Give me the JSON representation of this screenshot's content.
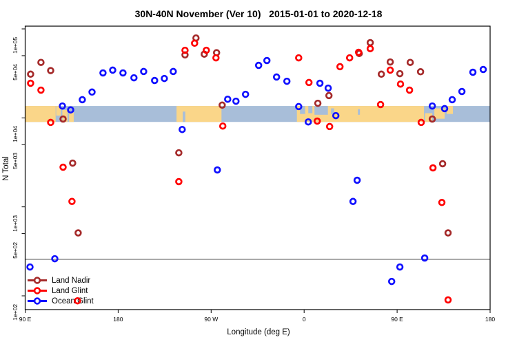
{
  "title": "30N-40N November (Ver 10)   2015-01-01 to 2020-12-18",
  "colors": {
    "land_nadir": "#A52A2A",
    "land_glint": "#FF0000",
    "ocean_glint": "#1010FF",
    "map_land": "#FAD689",
    "map_ocean": "#A8BED9",
    "reference_line": "#7F7F7F",
    "frame": "#000000"
  },
  "legend": [
    {
      "label": "Land Nadir",
      "color": "#A52A2A"
    },
    {
      "label": "Land Glint",
      "color": "#FF0000"
    },
    {
      "label": "Ocean Glint",
      "color": "#1010FF"
    }
  ],
  "map_strip": {
    "description": "world coastline strip for the 30N-40N latitude band drawn across the 1e+04 level",
    "top_value": 13600,
    "bottom_value": 9000,
    "land_segments": [
      {
        "t0": 0,
        "t1": 29.5
      },
      {
        "t0": 30,
        "t1": 34.5,
        "f0": 0,
        "f1": 0.6
      },
      {
        "t0": 36,
        "t1": 41,
        "f0": 0.25,
        "f1": 1
      },
      {
        "t0": 42.5,
        "t1": 47,
        "f0": 0.4,
        "f1": 1
      },
      {
        "t0": 146.5,
        "t1": 190
      },
      {
        "t0": 263,
        "t1": 386
      },
      {
        "t0": 387,
        "t1": 394,
        "f0": 0.45,
        "f1": 1
      },
      {
        "t0": 396,
        "t1": 406,
        "f0": 0.15,
        "f1": 0.8
      },
      {
        "t0": 408,
        "t1": 414,
        "f0": 0,
        "f1": 0.5
      }
    ],
    "ocean_patches": [
      {
        "t0": 152.5,
        "t1": 155,
        "f0": 0.35,
        "f1": 1
      },
      {
        "t0": 266,
        "t1": 271,
        "f0": 0,
        "f1": 0.5
      },
      {
        "t0": 274,
        "t1": 278,
        "f0": 0,
        "f1": 0.45
      },
      {
        "t0": 280,
        "t1": 293,
        "f0": 0,
        "f1": 0.55
      },
      {
        "t0": 296,
        "t1": 299,
        "f0": 0.15,
        "f1": 0.5
      },
      {
        "t0": 322,
        "t1": 324,
        "f0": 0.2,
        "f1": 0.55
      }
    ]
  },
  "chart_data": {
    "type": "scatter",
    "title": "30N-40N November (Ver 10)   2015-01-01 to 2020-12-18",
    "x_axis": {
      "label": "Longitude (deg E)",
      "unit": "axis position in degrees east of 90E; axis spans 450 deg, wrapping past the dateline",
      "range": [
        0,
        450
      ],
      "ticks": [
        {
          "t": 0,
          "label": "90 E"
        },
        {
          "t": 90,
          "label": "180"
        },
        {
          "t": 180,
          "label": "90 W"
        },
        {
          "t": 270,
          "label": "0"
        },
        {
          "t": 360,
          "label": "90 E"
        },
        {
          "t": 450,
          "label": "180"
        }
      ]
    },
    "y_axis": {
      "label": "N Total",
      "scale": "log10",
      "range": [
        70,
        120000
      ],
      "ticks": [
        {
          "v": 100000,
          "label": "1e+05"
        },
        {
          "v": 50000,
          "label": "5e+04"
        },
        {
          "v": 10000,
          "label": "1e+04"
        },
        {
          "v": 5000,
          "label": "5e+03"
        },
        {
          "v": 1000,
          "label": "1e+03"
        },
        {
          "v": 500,
          "label": "5e+02"
        },
        {
          "v": 100,
          "label": "1e+02"
        }
      ]
    },
    "reference_line_value": 257,
    "legend_position": "bottom-left",
    "series": [
      {
        "name": "Land Nadir",
        "color": "#A52A2A",
        "points": [
          [
            5.3,
            31000
          ],
          [
            15.3,
            42000
          ],
          [
            24.7,
            34000
          ],
          [
            36.7,
            9700
          ],
          [
            46,
            3100
          ],
          [
            51.3,
            510
          ],
          [
            148.7,
            4050
          ],
          [
            154.7,
            51000
          ],
          [
            165.3,
            79000
          ],
          [
            173.3,
            52000
          ],
          [
            185.3,
            54000
          ],
          [
            190.7,
            13900
          ],
          [
            283.3,
            14600
          ],
          [
            294,
            17800
          ],
          [
            323.3,
            53000
          ],
          [
            334,
            70000
          ],
          [
            344.7,
            31000
          ],
          [
            353.3,
            42500
          ],
          [
            362.7,
            31400
          ],
          [
            372.7,
            42000
          ],
          [
            382.7,
            33000
          ],
          [
            394,
            9700
          ],
          [
            404,
            3050
          ],
          [
            409.3,
            510
          ]
        ]
      },
      {
        "name": "Land Glint",
        "color": "#FF0000",
        "points": [
          [
            5.3,
            24500
          ],
          [
            15.3,
            20500
          ],
          [
            24.7,
            8900
          ],
          [
            36.7,
            2790
          ],
          [
            45.3,
            1150
          ],
          [
            50.7,
            88
          ],
          [
            148.7,
            1920
          ],
          [
            154.7,
            57500
          ],
          [
            164,
            69000
          ],
          [
            175.3,
            57500
          ],
          [
            184.7,
            47300
          ],
          [
            191.3,
            8100
          ],
          [
            264.7,
            47300
          ],
          [
            274.7,
            25000
          ],
          [
            282.7,
            9200
          ],
          [
            294.7,
            8000
          ],
          [
            304.7,
            37600
          ],
          [
            314,
            47300
          ],
          [
            322.7,
            54600
          ],
          [
            334,
            60000
          ],
          [
            344,
            14100
          ],
          [
            353.3,
            34400
          ],
          [
            363.3,
            24000
          ],
          [
            372,
            20500
          ],
          [
            383.3,
            8900
          ],
          [
            394.7,
            2740
          ],
          [
            403.3,
            1120
          ],
          [
            409.3,
            90
          ]
        ]
      },
      {
        "name": "Ocean Glint",
        "color": "#1010FF",
        "points": [
          [
            4.7,
            211
          ],
          [
            28.7,
            261
          ],
          [
            36,
            13600
          ],
          [
            44,
            12300
          ],
          [
            55.3,
            16000
          ],
          [
            64.7,
            19500
          ],
          [
            75.3,
            32000
          ],
          [
            84.7,
            34400
          ],
          [
            94.7,
            32000
          ],
          [
            105.3,
            28200
          ],
          [
            114.7,
            33200
          ],
          [
            125.3,
            26300
          ],
          [
            134.7,
            27700
          ],
          [
            143.3,
            33200
          ],
          [
            152,
            7400
          ],
          [
            186,
            2600
          ],
          [
            196,
            16200
          ],
          [
            204,
            15400
          ],
          [
            213.3,
            18400
          ],
          [
            226,
            38900
          ],
          [
            234,
            44100
          ],
          [
            243.3,
            28800
          ],
          [
            253.3,
            25800
          ],
          [
            264.7,
            13400
          ],
          [
            274,
            9000
          ],
          [
            285.3,
            24500
          ],
          [
            293.3,
            21600
          ],
          [
            300.7,
            10600
          ],
          [
            317.3,
            1150
          ],
          [
            321.3,
            1990
          ],
          [
            354.7,
            145
          ],
          [
            362.7,
            211
          ],
          [
            386.7,
            266
          ],
          [
            394,
            13600
          ],
          [
            406,
            12700
          ],
          [
            413.3,
            16000
          ],
          [
            422.7,
            19800
          ],
          [
            433.3,
            32600
          ],
          [
            443.3,
            35000
          ]
        ]
      }
    ]
  }
}
